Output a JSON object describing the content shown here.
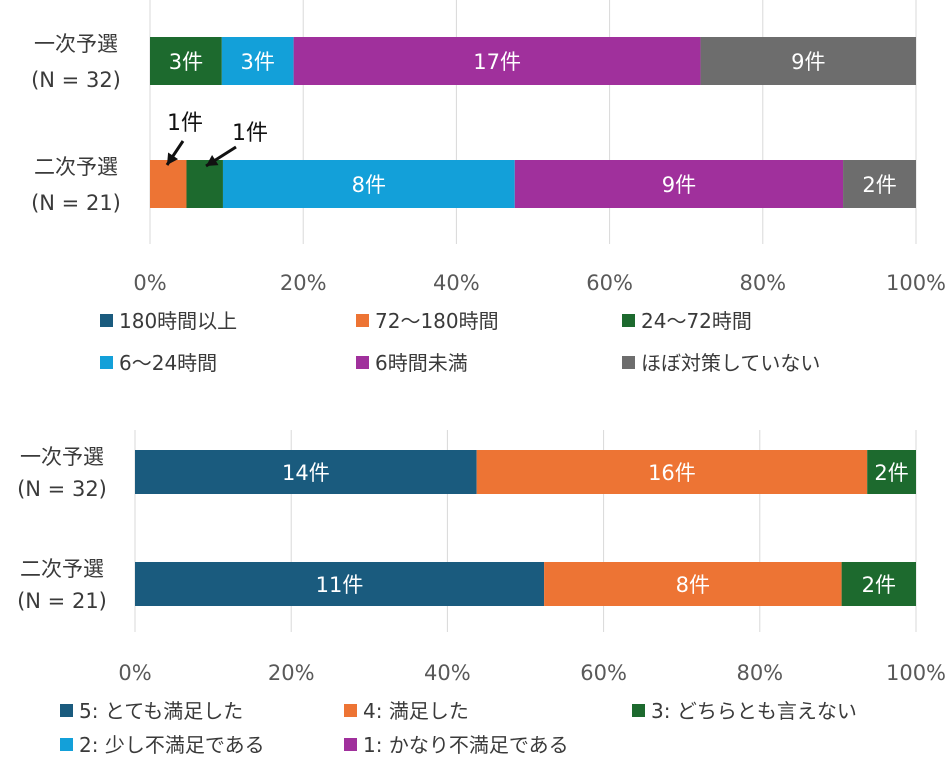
{
  "chart_data": [
    {
      "type": "bar",
      "orientation": "horizontal",
      "stacked": "percent",
      "categories": [
        {
          "name": "一次予選",
          "n_label": "(N = 32)"
        },
        {
          "name": "二次予選",
          "n_label": "(N = 21)"
        }
      ],
      "series": [
        {
          "name": "180時間以上",
          "color": "#1a5b7e",
          "values": [
            0,
            0
          ],
          "labels": [
            "",
            ""
          ]
        },
        {
          "name": "72〜180時間",
          "color": "#ed7434",
          "values": [
            0,
            1
          ],
          "labels": [
            "",
            ""
          ]
        },
        {
          "name": "24〜72時間",
          "color": "#1d6a2e",
          "values": [
            3,
            1
          ],
          "labels": [
            "3件",
            ""
          ]
        },
        {
          "name": "6〜24時間",
          "color": "#13a0d9",
          "values": [
            3,
            8
          ],
          "labels": [
            "3件",
            "8件"
          ]
        },
        {
          "name": "6時間未満",
          "color": "#a0309c",
          "values": [
            17,
            9
          ],
          "labels": [
            "17件",
            "9件"
          ]
        },
        {
          "name": "ほぼ対策していない",
          "color": "#6d6d6d",
          "values": [
            9,
            2
          ],
          "labels": [
            "9件",
            "2件"
          ]
        }
      ],
      "annotations": [
        {
          "text": "1件",
          "series": 1,
          "category": 1
        },
        {
          "text": "1件",
          "series": 2,
          "category": 1
        }
      ],
      "xlim": [
        0,
        100
      ],
      "xticks": [
        "0%",
        "20%",
        "40%",
        "60%",
        "80%",
        "100%"
      ],
      "legend": "bottom",
      "grid": true
    },
    {
      "type": "bar",
      "orientation": "horizontal",
      "stacked": "percent",
      "categories": [
        {
          "name": "一次予選",
          "n_label": "(N = 32)"
        },
        {
          "name": "二次予選",
          "n_label": "(N = 21)"
        }
      ],
      "series": [
        {
          "name": "5: とても満足した",
          "color": "#1a5b7e",
          "values": [
            14,
            11
          ],
          "labels": [
            "14件",
            "11件"
          ]
        },
        {
          "name": "4: 満足した",
          "color": "#ed7434",
          "values": [
            16,
            8
          ],
          "labels": [
            "16件",
            "8件"
          ]
        },
        {
          "name": "3: どちらとも言えない",
          "color": "#1d6a2e",
          "values": [
            2,
            2
          ],
          "labels": [
            "2件",
            "2件"
          ]
        },
        {
          "name": "2: 少し不満足である",
          "color": "#13a0d9",
          "values": [
            0,
            0
          ],
          "labels": [
            "",
            ""
          ]
        },
        {
          "name": "1: かなり不満足である",
          "color": "#a0309c",
          "values": [
            0,
            0
          ],
          "labels": [
            "",
            ""
          ]
        }
      ],
      "annotations": [],
      "xlim": [
        0,
        100
      ],
      "xticks": [
        "0%",
        "20%",
        "40%",
        "60%",
        "80%",
        "100%"
      ],
      "legend": "bottom",
      "grid": true
    }
  ]
}
